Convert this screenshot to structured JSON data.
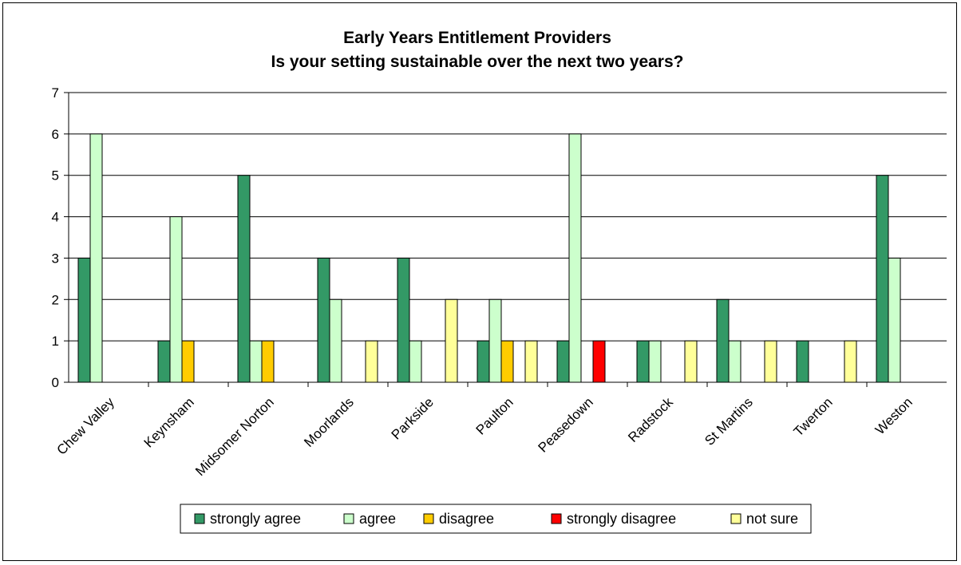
{
  "chart_data": {
    "type": "bar",
    "title": "Early Years Entitlement Providers",
    "subtitle": "Is your setting sustainable over the next two years?",
    "xlabel": "",
    "ylabel": "",
    "ylim": [
      0,
      7
    ],
    "yticks": [
      "0",
      "1",
      "2",
      "3",
      "4",
      "5",
      "6",
      "7"
    ],
    "grid": true,
    "legend_position": "bottom",
    "categories": [
      "Chew Valley",
      "Keynsham",
      "Midsomer Norton",
      "Moorlands",
      "Parkside",
      "Paulton",
      "Peasedown",
      "Radstock",
      "St Martins",
      "Twerton",
      "Weston"
    ],
    "series": [
      {
        "name": "strongly agree",
        "color": "#339966",
        "values": [
          3,
          1,
          5,
          3,
          3,
          1,
          1,
          1,
          2,
          1,
          5
        ]
      },
      {
        "name": "agree",
        "color": "#ccffcc",
        "values": [
          6,
          4,
          1,
          2,
          1,
          2,
          6,
          1,
          1,
          0,
          3
        ]
      },
      {
        "name": "disagree",
        "color": "#ffcc00",
        "values": [
          0,
          1,
          1,
          0,
          0,
          1,
          0,
          0,
          0,
          0,
          0
        ]
      },
      {
        "name": "strongly disagree",
        "color": "#ff0000",
        "values": [
          0,
          0,
          0,
          0,
          0,
          0,
          1,
          0,
          0,
          0,
          0
        ]
      },
      {
        "name": "not sure",
        "color": "#ffff99",
        "values": [
          0,
          0,
          0,
          1,
          2,
          1,
          0,
          1,
          1,
          1,
          0
        ]
      }
    ]
  }
}
